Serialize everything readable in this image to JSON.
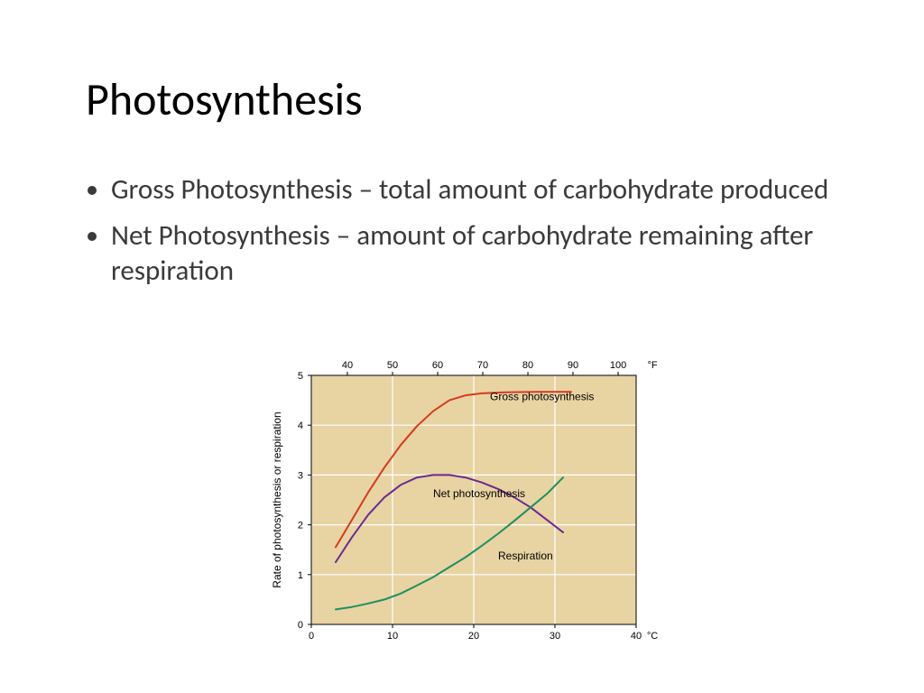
{
  "title": "Photosynthesis",
  "bullets": [
    "Gross Photosynthesis – total amount of carbohydrate produced",
    "Net Photosynthesis – amount of carbohydrate remaining after respiration"
  ],
  "chart": {
    "type": "line",
    "background_color": "#ffffff",
    "plot_bg_color": "#e8d3a3",
    "grid_color": "#ffffff",
    "axis_color": "#000000",
    "line_width": 2,
    "x_bottom": {
      "min": 0,
      "max": 40,
      "ticks": [
        0,
        10,
        20,
        30,
        40
      ],
      "unit": "°C"
    },
    "x_top": {
      "ticks_at_c": [
        4.44,
        10,
        15.56,
        21.11,
        26.67,
        32.22,
        37.78
      ],
      "labels": [
        "40",
        "50",
        "60",
        "70",
        "80",
        "90",
        "100"
      ],
      "unit": "°F"
    },
    "y_axis": {
      "min": 0,
      "max": 5,
      "ticks": [
        0,
        1,
        2,
        3,
        4,
        5
      ],
      "label": "Rate of photosynthesis or respiration"
    },
    "series": [
      {
        "name": "Gross photosynthesis",
        "label": "Gross photosynthesis",
        "color": "#d63a1f",
        "label_pos_c": 22,
        "label_pos_y": 4.5,
        "data": [
          [
            3,
            1.55
          ],
          [
            5,
            2.1
          ],
          [
            7,
            2.65
          ],
          [
            9,
            3.15
          ],
          [
            11,
            3.6
          ],
          [
            13,
            3.98
          ],
          [
            15,
            4.28
          ],
          [
            17,
            4.5
          ],
          [
            19,
            4.6
          ],
          [
            21,
            4.64
          ],
          [
            24,
            4.66
          ],
          [
            28,
            4.67
          ],
          [
            32,
            4.67
          ]
        ]
      },
      {
        "name": "Net photosynthesis",
        "label": "Net photosynthesis",
        "color": "#6a2b8f",
        "label_pos_c": 15,
        "label_pos_y": 2.55,
        "data": [
          [
            3,
            1.25
          ],
          [
            5,
            1.75
          ],
          [
            7,
            2.2
          ],
          [
            9,
            2.55
          ],
          [
            11,
            2.8
          ],
          [
            13,
            2.95
          ],
          [
            15,
            3.0
          ],
          [
            17,
            3.0
          ],
          [
            19,
            2.95
          ],
          [
            21,
            2.85
          ],
          [
            23,
            2.72
          ],
          [
            25,
            2.55
          ],
          [
            27,
            2.35
          ],
          [
            29,
            2.1
          ],
          [
            31,
            1.85
          ]
        ]
      },
      {
        "name": "Respiration",
        "label": "Respiration",
        "color": "#1f8f5f",
        "label_pos_c": 23,
        "label_pos_y": 1.3,
        "data": [
          [
            3,
            0.3
          ],
          [
            5,
            0.35
          ],
          [
            7,
            0.42
          ],
          [
            9,
            0.5
          ],
          [
            11,
            0.62
          ],
          [
            13,
            0.78
          ],
          [
            15,
            0.95
          ],
          [
            17,
            1.15
          ],
          [
            19,
            1.35
          ],
          [
            21,
            1.58
          ],
          [
            23,
            1.82
          ],
          [
            25,
            2.08
          ],
          [
            27,
            2.35
          ],
          [
            29,
            2.62
          ],
          [
            31,
            2.95
          ]
        ]
      }
    ]
  }
}
